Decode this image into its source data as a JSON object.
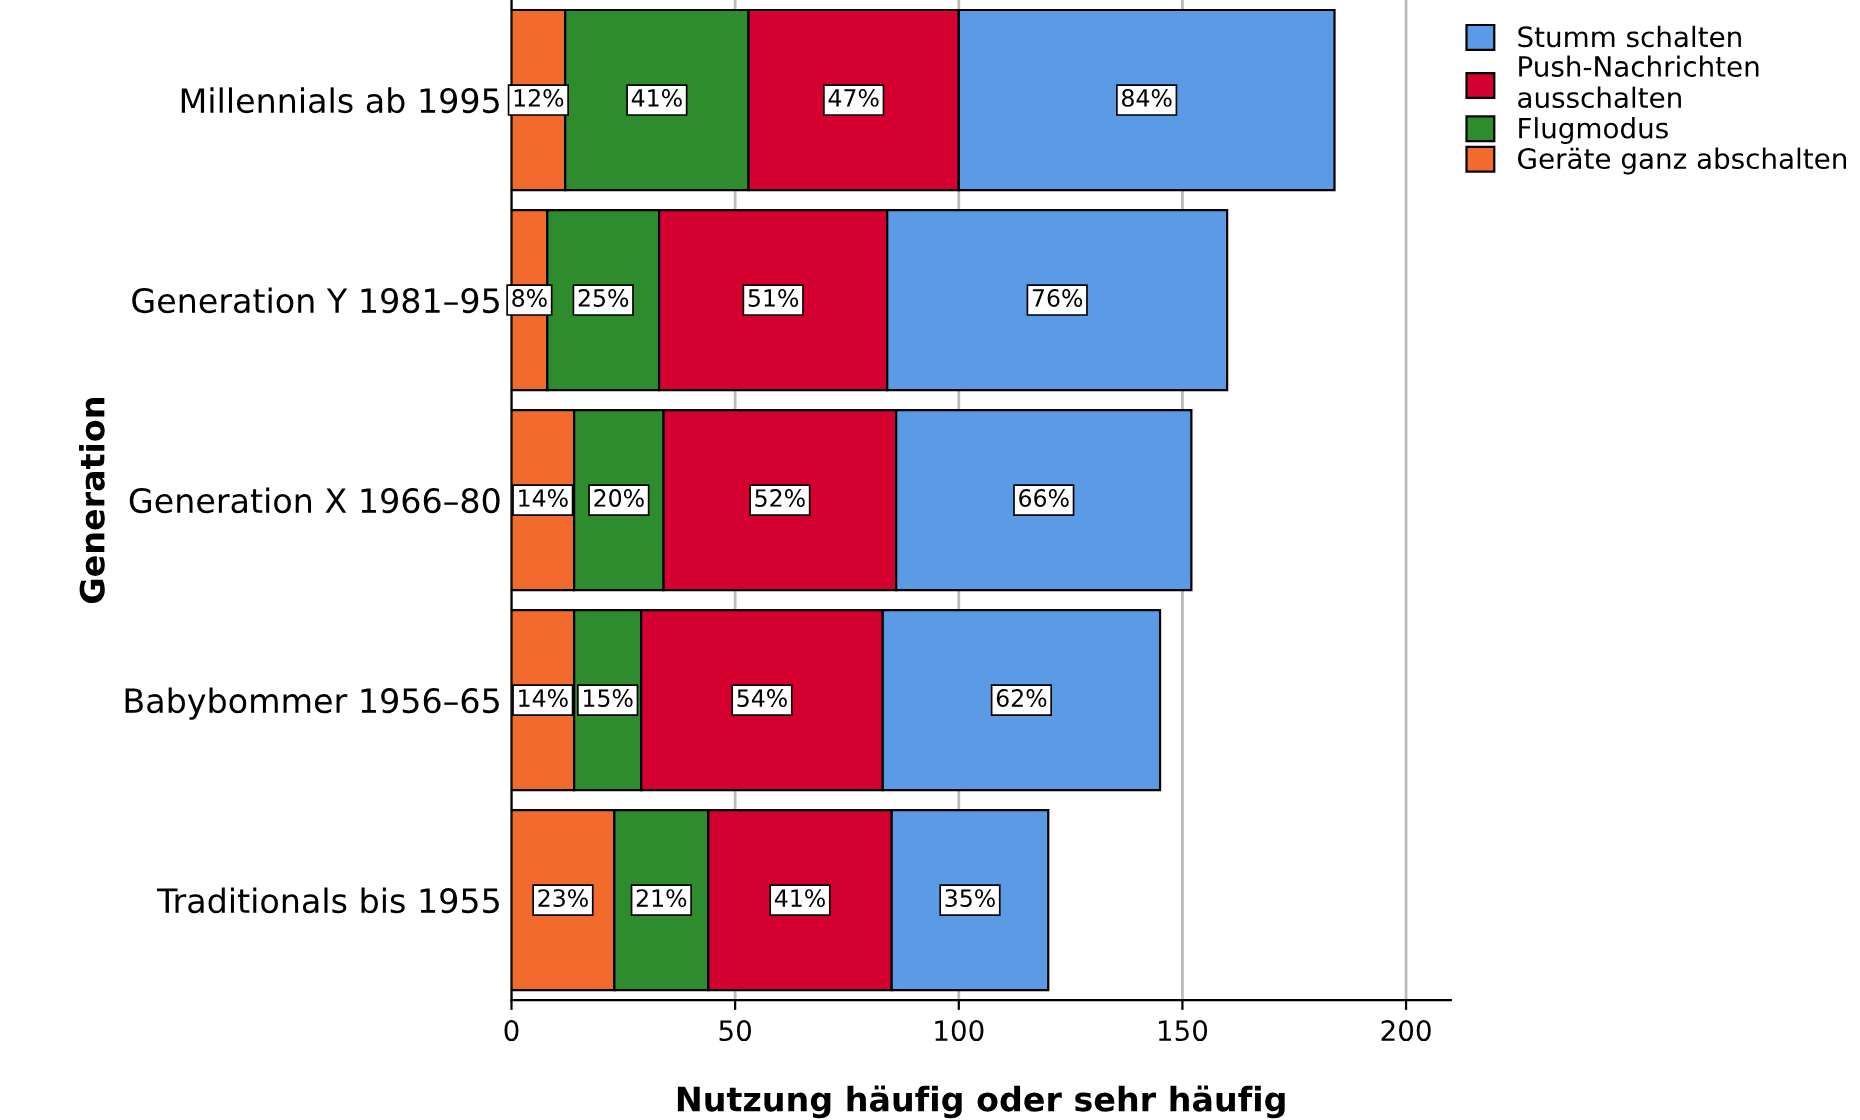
{
  "chart_data": {
    "type": "bar",
    "orientation": "horizontal",
    "stacked": true,
    "xlabel": "Nutzung häufig oder sehr häufig",
    "ylabel": "Generation",
    "categories": [
      "Millennials ab 1995",
      "Generation Y 1981–95",
      "Generation X 1966–80",
      "Babybommer 1956–65",
      "Traditionals bis 1955"
    ],
    "series": [
      {
        "name": "Geräte ganz abschalten",
        "color": "#f26b2c",
        "values": [
          12,
          8,
          14,
          14,
          23
        ],
        "value_labels": [
          "12%",
          "8%",
          "14%",
          "14%",
          "23%"
        ]
      },
      {
        "name": "Flugmodus",
        "color": "#2e8b2e",
        "values": [
          41,
          25,
          20,
          15,
          21
        ],
        "value_labels": [
          "41%",
          "25%",
          "20%",
          "15%",
          "21%"
        ]
      },
      {
        "name": "Push-Nachrichten\nausschalten",
        "color": "#d4002f",
        "values": [
          47,
          51,
          52,
          54,
          41
        ],
        "value_labels": [
          "47%",
          "51%",
          "52%",
          "54%",
          "41%"
        ]
      },
      {
        "name": "Stumm schalten",
        "color": "#5b9be6",
        "values": [
          84,
          76,
          66,
          62,
          35
        ],
        "value_labels": [
          "84%",
          "76%",
          "66%",
          "62%",
          "35%"
        ]
      }
    ],
    "xlim": [
      0,
      210
    ],
    "xticks": [
      0,
      50,
      100,
      150,
      200
    ],
    "grid": "x",
    "legend": "top right"
  }
}
